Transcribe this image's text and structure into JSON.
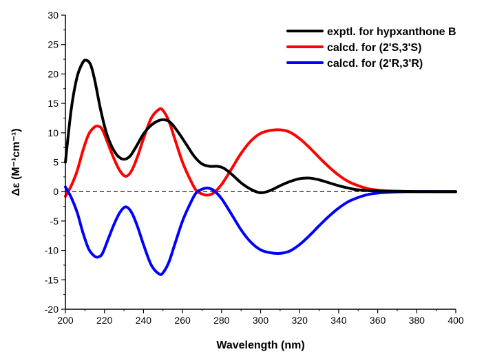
{
  "chart_data": {
    "type": "line",
    "title": "",
    "xlabel": "Wavelength (nm)",
    "ylabel": "Δε (M⁻¹cm⁻¹)",
    "xlim": [
      200,
      400
    ],
    "ylim": [
      -20,
      30
    ],
    "xticks": [
      200,
      220,
      240,
      260,
      280,
      300,
      320,
      340,
      360,
      380,
      400
    ],
    "yticks": [
      -20,
      -15,
      -10,
      -5,
      0,
      5,
      10,
      15,
      20,
      25,
      30
    ],
    "zero_line": {
      "style": "dashed",
      "y": 0
    },
    "legend_position": "top-right",
    "grid": false,
    "series": [
      {
        "name": "exptl. for hypxanthone B",
        "color": "#000000",
        "points": [
          [
            200,
            5
          ],
          [
            203,
            14
          ],
          [
            206,
            19.5
          ],
          [
            209,
            22
          ],
          [
            211,
            22.3
          ],
          [
            213,
            21.5
          ],
          [
            215,
            19
          ],
          [
            218,
            14
          ],
          [
            221,
            10
          ],
          [
            224,
            7.5
          ],
          [
            227,
            6
          ],
          [
            230,
            5.5
          ],
          [
            233,
            6
          ],
          [
            236,
            7.5
          ],
          [
            240,
            9.8
          ],
          [
            244,
            11.3
          ],
          [
            248,
            12.1
          ],
          [
            251,
            12.2
          ],
          [
            254,
            11.7
          ],
          [
            258,
            10
          ],
          [
            262,
            8
          ],
          [
            266,
            6
          ],
          [
            270,
            4.7
          ],
          [
            274,
            4.3
          ],
          [
            278,
            4.3
          ],
          [
            281,
            4
          ],
          [
            285,
            3
          ],
          [
            290,
            1.5
          ],
          [
            295,
            0.4
          ],
          [
            300,
            -0.2
          ],
          [
            305,
            0.2
          ],
          [
            310,
            1
          ],
          [
            315,
            1.7
          ],
          [
            320,
            2.2
          ],
          [
            325,
            2.3
          ],
          [
            330,
            2
          ],
          [
            335,
            1.5
          ],
          [
            340,
            1
          ],
          [
            345,
            0.6
          ],
          [
            350,
            0.3
          ],
          [
            360,
            0.1
          ],
          [
            370,
            0.05
          ],
          [
            380,
            0
          ],
          [
            390,
            0
          ],
          [
            400,
            0
          ]
        ]
      },
      {
        "name": "calcd. for (2'S,3'S)",
        "color": "#ff0000",
        "points": [
          [
            200,
            -0.8
          ],
          [
            203,
            1
          ],
          [
            206,
            3.5
          ],
          [
            209,
            7
          ],
          [
            212,
            9.8
          ],
          [
            215,
            11
          ],
          [
            217,
            11.1
          ],
          [
            219,
            10.5
          ],
          [
            222,
            8
          ],
          [
            225,
            5.5
          ],
          [
            228,
            3.5
          ],
          [
            231,
            2.6
          ],
          [
            234,
            3.6
          ],
          [
            237,
            6
          ],
          [
            240,
            9
          ],
          [
            244,
            12.5
          ],
          [
            248,
            14
          ],
          [
            250,
            13.8
          ],
          [
            253,
            12
          ],
          [
            256,
            9
          ],
          [
            260,
            5
          ],
          [
            264,
            2
          ],
          [
            267,
            0.2
          ],
          [
            270,
            -0.4
          ],
          [
            273,
            -0.6
          ],
          [
            276,
            -0.2
          ],
          [
            280,
            1.2
          ],
          [
            285,
            3.8
          ],
          [
            290,
            6.5
          ],
          [
            295,
            8.6
          ],
          [
            300,
            9.9
          ],
          [
            305,
            10.4
          ],
          [
            310,
            10.5
          ],
          [
            315,
            10.1
          ],
          [
            320,
            9
          ],
          [
            325,
            7.5
          ],
          [
            330,
            5.8
          ],
          [
            335,
            4.2
          ],
          [
            340,
            2.8
          ],
          [
            345,
            1.7
          ],
          [
            350,
            1
          ],
          [
            355,
            0.5
          ],
          [
            360,
            0.25
          ],
          [
            365,
            0.12
          ],
          [
            370,
            0.05
          ],
          [
            380,
            0
          ],
          [
            390,
            0
          ],
          [
            400,
            0
          ]
        ]
      },
      {
        "name": "calcd. for (2'R,3'R)",
        "color": "#0000ff",
        "points": [
          [
            200,
            0.8
          ],
          [
            203,
            -1
          ],
          [
            206,
            -3.5
          ],
          [
            209,
            -7
          ],
          [
            212,
            -9.8
          ],
          [
            215,
            -11
          ],
          [
            217,
            -11.1
          ],
          [
            219,
            -10.5
          ],
          [
            222,
            -8
          ],
          [
            225,
            -5.5
          ],
          [
            228,
            -3.5
          ],
          [
            231,
            -2.6
          ],
          [
            234,
            -3.6
          ],
          [
            237,
            -6
          ],
          [
            240,
            -9
          ],
          [
            244,
            -12.5
          ],
          [
            248,
            -14
          ],
          [
            250,
            -13.8
          ],
          [
            253,
            -12
          ],
          [
            256,
            -9
          ],
          [
            260,
            -5
          ],
          [
            264,
            -2
          ],
          [
            267,
            -0.2
          ],
          [
            270,
            0.4
          ],
          [
            273,
            0.6
          ],
          [
            276,
            0.2
          ],
          [
            280,
            -1.2
          ],
          [
            285,
            -3.8
          ],
          [
            290,
            -6.5
          ],
          [
            295,
            -8.6
          ],
          [
            300,
            -9.9
          ],
          [
            305,
            -10.4
          ],
          [
            310,
            -10.5
          ],
          [
            315,
            -10.1
          ],
          [
            320,
            -9
          ],
          [
            325,
            -7.5
          ],
          [
            330,
            -5.8
          ],
          [
            335,
            -4.2
          ],
          [
            340,
            -2.8
          ],
          [
            345,
            -1.7
          ],
          [
            350,
            -1
          ],
          [
            355,
            -0.5
          ],
          [
            360,
            -0.25
          ],
          [
            365,
            -0.12
          ],
          [
            370,
            -0.05
          ],
          [
            380,
            0
          ],
          [
            390,
            0
          ],
          [
            400,
            0
          ]
        ]
      }
    ]
  }
}
